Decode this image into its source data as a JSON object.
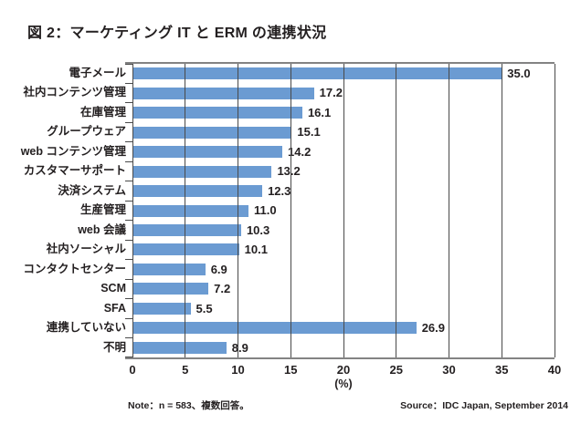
{
  "title": "図 2：マーケティング IT と ERM の連携状況",
  "chart_data": {
    "type": "bar",
    "orientation": "horizontal",
    "title": "図 2：マーケティング IT と ERM の連携状況",
    "categories": [
      "電子メール",
      "社内コンテンツ管理",
      "在庫管理",
      "グループウェア",
      "web コンテンツ管理",
      "カスタマーサポート",
      "決済システム",
      "生産管理",
      "web 会議",
      "社内ソーシャル",
      "コンタクトセンター",
      "SCM",
      "SFA",
      "連携していない",
      "不明"
    ],
    "values": [
      35.0,
      17.2,
      16.1,
      15.1,
      14.2,
      13.2,
      12.3,
      11.0,
      10.3,
      10.1,
      6.9,
      7.2,
      5.5,
      26.9,
      8.9
    ],
    "value_labels": [
      "35.0",
      "17.2",
      "16.1",
      "15.1",
      "14.2",
      "13.2",
      "12.3",
      "11.0",
      "10.3",
      "10.1",
      "6.9",
      "7.2",
      "5.5",
      "26.9",
      "8.9"
    ],
    "xlabel": "(%)",
    "xlim": [
      0,
      40
    ],
    "xticks": [
      0,
      5,
      10,
      15,
      20,
      25,
      30,
      35,
      40
    ],
    "grid": true,
    "legend": false,
    "bar_color": "#6b9bd2",
    "grid_color": "#4a4a4a",
    "frame_color": "#838383",
    "text_color": "#231f20"
  },
  "footer": {
    "note": "Note：n = 583、複数回答。",
    "source": "Source：IDC Japan, September 2014"
  }
}
